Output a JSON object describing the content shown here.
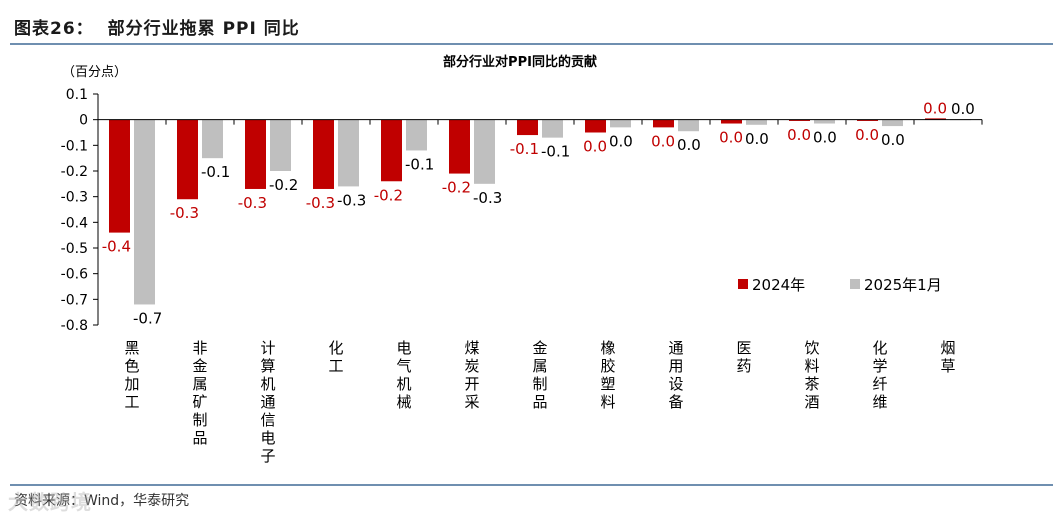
{
  "figure": {
    "number": "图表26：",
    "title": "部分行业拖累 PPI 同比",
    "source": "资料来源：Wind，华泰研究",
    "watermark": "大数跨境"
  },
  "colors": {
    "series_2024": "#c00000",
    "series_2025": "#bfbfbf",
    "rule": "#6f8fb0"
  },
  "chart_data": {
    "type": "bar",
    "title": "部分行业对PPI同比的贡献",
    "unit_label": "（百分点）",
    "ylim": [
      -0.8,
      0.1
    ],
    "yticks": [
      0.1,
      0,
      -0.1,
      -0.2,
      -0.3,
      -0.4,
      -0.5,
      -0.6,
      -0.7,
      -0.8
    ],
    "ytick_labels": [
      "0.1",
      "0",
      "-0.1",
      "-0.2",
      "-0.3",
      "-0.4",
      "-0.5",
      "-0.6",
      "-0.7",
      "-0.8"
    ],
    "categories": [
      "黑色加工",
      "非金属矿制品",
      "计算机通信电子",
      "化工",
      "电气机械",
      "煤炭开采",
      "金属制品",
      "橡胶塑料",
      "通用设备",
      "医药",
      "饮料茶酒",
      "化学纤维",
      "烟草"
    ],
    "series": [
      {
        "name": "2024年",
        "values": [
          -0.44,
          -0.31,
          -0.27,
          -0.27,
          -0.24,
          -0.21,
          -0.06,
          -0.05,
          -0.03,
          -0.015,
          -0.005,
          -0.005,
          0.005
        ],
        "labels": [
          "-0.4",
          "-0.3",
          "-0.3",
          "-0.3",
          "-0.2",
          "-0.2",
          "-0.1",
          "0.0",
          "0.0",
          "0.0",
          "0.0",
          "0.0",
          "0.0"
        ]
      },
      {
        "name": "2025年1月",
        "values": [
          -0.72,
          -0.15,
          -0.2,
          -0.26,
          -0.12,
          -0.25,
          -0.07,
          -0.03,
          -0.045,
          -0.02,
          -0.015,
          -0.025,
          0.002
        ],
        "labels": [
          "-0.7",
          "-0.1",
          "-0.2",
          "-0.3",
          "-0.1",
          "-0.3",
          "-0.1",
          "0.0",
          "0.0",
          "0.0",
          "0.0",
          "0.0",
          "0.0"
        ]
      }
    ],
    "legend_position": "lower-right",
    "grid": false
  }
}
